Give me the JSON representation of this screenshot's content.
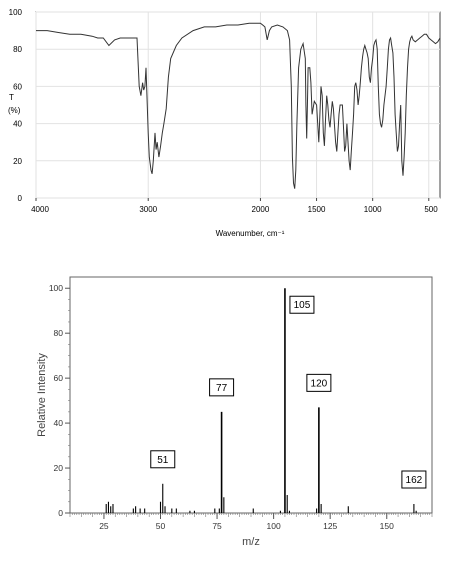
{
  "chart_data": [
    {
      "type": "line",
      "title": "",
      "xlabel": "Wavenumber, cm⁻¹",
      "ylabel_line1": "T",
      "ylabel_line2": "(%)",
      "xlim": [
        4000,
        400
      ],
      "ylim": [
        0,
        100
      ],
      "xticks": [
        4000,
        3000,
        2000,
        1500,
        1000,
        500
      ],
      "yticks": [
        0,
        20,
        40,
        60,
        80,
        100
      ],
      "line_color": "#333333",
      "x": [
        4000,
        3900,
        3800,
        3700,
        3600,
        3500,
        3450,
        3400,
        3350,
        3300,
        3250,
        3200,
        3150,
        3100,
        3080,
        3065,
        3050,
        3040,
        3030,
        3020,
        3000,
        2990,
        2975,
        2965,
        2955,
        2940,
        2930,
        2920,
        2905,
        2890,
        2875,
        2860,
        2840,
        2820,
        2800,
        2750,
        2700,
        2600,
        2500,
        2400,
        2300,
        2200,
        2100,
        2000,
        1980,
        1960,
        1940,
        1920,
        1900,
        1850,
        1800,
        1760,
        1740,
        1725,
        1715,
        1705,
        1695,
        1685,
        1675,
        1660,
        1640,
        1620,
        1600,
        1595,
        1588,
        1580,
        1575,
        1560,
        1550,
        1540,
        1520,
        1500,
        1490,
        1480,
        1470,
        1460,
        1450,
        1440,
        1430,
        1420,
        1410,
        1400,
        1390,
        1380,
        1370,
        1360,
        1350,
        1330,
        1320,
        1310,
        1300,
        1290,
        1280,
        1270,
        1260,
        1250,
        1240,
        1230,
        1220,
        1210,
        1200,
        1190,
        1180,
        1170,
        1160,
        1150,
        1140,
        1130,
        1120,
        1110,
        1100,
        1090,
        1080,
        1070,
        1060,
        1050,
        1040,
        1030,
        1020,
        1010,
        1000,
        990,
        980,
        970,
        960,
        950,
        940,
        930,
        920,
        910,
        900,
        890,
        880,
        870,
        860,
        850,
        840,
        830,
        820,
        810,
        800,
        790,
        780,
        770,
        760,
        750,
        740,
        730,
        720,
        710,
        700,
        690,
        680,
        670,
        660,
        650,
        640,
        620,
        600,
        580,
        560,
        540,
        520,
        500,
        480,
        460,
        440,
        420,
        400
      ],
      "y": [
        90,
        90,
        89,
        88,
        88,
        87,
        86,
        86,
        82,
        85,
        86,
        86,
        86,
        86,
        60,
        55,
        62,
        58,
        60,
        70,
        35,
        22,
        15,
        13,
        20,
        35,
        26,
        30,
        22,
        28,
        35,
        40,
        48,
        65,
        75,
        82,
        86,
        90,
        92,
        92,
        93,
        93,
        94,
        94,
        93,
        92,
        85,
        90,
        92,
        93,
        92,
        90,
        85,
        60,
        22,
        8,
        5,
        15,
        40,
        70,
        80,
        83,
        75,
        50,
        32,
        55,
        70,
        70,
        62,
        45,
        52,
        50,
        40,
        30,
        45,
        60,
        55,
        35,
        28,
        42,
        55,
        50,
        42,
        38,
        45,
        52,
        48,
        30,
        25,
        35,
        45,
        50,
        50,
        50,
        38,
        25,
        28,
        40,
        30,
        20,
        15,
        25,
        35,
        45,
        60,
        62,
        58,
        50,
        55,
        62,
        70,
        76,
        80,
        82,
        80,
        78,
        75,
        65,
        62,
        70,
        75,
        82,
        84,
        85,
        80,
        60,
        45,
        40,
        38,
        42,
        50,
        55,
        60,
        70,
        80,
        85,
        86,
        82,
        78,
        65,
        45,
        35,
        25,
        28,
        40,
        50,
        20,
        12,
        22,
        35,
        55,
        70,
        80,
        84,
        86,
        87,
        85,
        84,
        85,
        86,
        87,
        88,
        88,
        86,
        85,
        84,
        83,
        84,
        86
      ]
    },
    {
      "type": "bar",
      "title": "",
      "xlabel": "m/z",
      "ylabel": "Relative Intensity",
      "xlim": [
        10,
        170
      ],
      "ylim": [
        0,
        105
      ],
      "xticks": [
        25,
        50,
        75,
        100,
        125,
        150
      ],
      "yticks": [
        0,
        20,
        40,
        60,
        80,
        100
      ],
      "bar_color": "#000000",
      "peaks": [
        {
          "mz": 26,
          "intensity": 4
        },
        {
          "mz": 27,
          "intensity": 5
        },
        {
          "mz": 28,
          "intensity": 3
        },
        {
          "mz": 29,
          "intensity": 4
        },
        {
          "mz": 38,
          "intensity": 2
        },
        {
          "mz": 39,
          "intensity": 3
        },
        {
          "mz": 41,
          "intensity": 2
        },
        {
          "mz": 43,
          "intensity": 2
        },
        {
          "mz": 50,
          "intensity": 5
        },
        {
          "mz": 51,
          "intensity": 13
        },
        {
          "mz": 52,
          "intensity": 3
        },
        {
          "mz": 55,
          "intensity": 2
        },
        {
          "mz": 57,
          "intensity": 2
        },
        {
          "mz": 63,
          "intensity": 1
        },
        {
          "mz": 65,
          "intensity": 1
        },
        {
          "mz": 74,
          "intensity": 2
        },
        {
          "mz": 76,
          "intensity": 2
        },
        {
          "mz": 77,
          "intensity": 45
        },
        {
          "mz": 78,
          "intensity": 7
        },
        {
          "mz": 91,
          "intensity": 2
        },
        {
          "mz": 103,
          "intensity": 1
        },
        {
          "mz": 105,
          "intensity": 100
        },
        {
          "mz": 106,
          "intensity": 8
        },
        {
          "mz": 107,
          "intensity": 1
        },
        {
          "mz": 119,
          "intensity": 2
        },
        {
          "mz": 120,
          "intensity": 47
        },
        {
          "mz": 121,
          "intensity": 4
        },
        {
          "mz": 133,
          "intensity": 3
        },
        {
          "mz": 162,
          "intensity": 4
        },
        {
          "mz": 163,
          "intensity": 1
        }
      ],
      "annotations": [
        {
          "text": "51",
          "mz": 51
        },
        {
          "text": "77",
          "mz": 77
        },
        {
          "text": "105",
          "mz": 105
        },
        {
          "text": "120",
          "mz": 120
        },
        {
          "text": "162",
          "mz": 162
        }
      ]
    }
  ]
}
